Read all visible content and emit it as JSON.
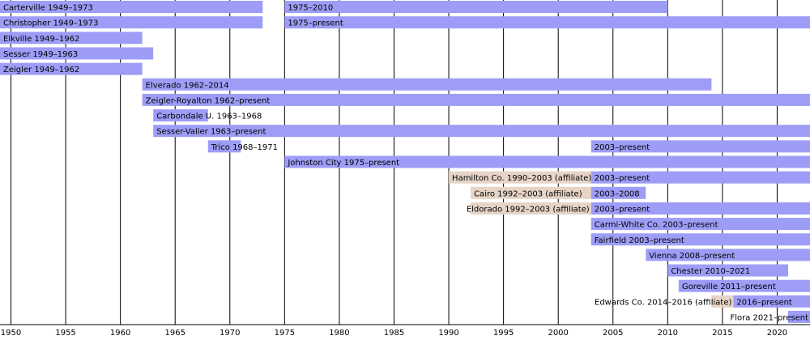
{
  "chart_data": {
    "type": "timeline",
    "xlim": [
      1949,
      2023
    ],
    "xticks": [
      1950,
      1955,
      1960,
      1965,
      1970,
      1975,
      1980,
      1985,
      1990,
      1995,
      2000,
      2005,
      2010,
      2015,
      2020
    ],
    "grid": true,
    "rows": [
      {
        "bars": [
          {
            "label": "Carterville 1949–1973",
            "start": 1949,
            "end": 1973,
            "color": "#9d9df7"
          },
          {
            "label": "1975–2010",
            "start": 1975,
            "end": 2010,
            "color": "#9d9df7"
          }
        ]
      },
      {
        "bars": [
          {
            "label": "Christopher 1949–1973",
            "start": 1949,
            "end": 1973,
            "color": "#9d9df7"
          },
          {
            "label": "1975–present",
            "start": 1975,
            "end": null,
            "color": "#9d9df7"
          }
        ]
      },
      {
        "bars": [
          {
            "label": "Elkville 1949–1962",
            "start": 1949,
            "end": 1962,
            "color": "#9d9df7"
          }
        ]
      },
      {
        "bars": [
          {
            "label": "Sesser 1949–1963",
            "start": 1949,
            "end": 1963,
            "color": "#9d9df7"
          }
        ]
      },
      {
        "bars": [
          {
            "label": "Zeigler 1949–1962",
            "start": 1949,
            "end": 1962,
            "color": "#9d9df7"
          }
        ]
      },
      {
        "bars": [
          {
            "label": "Elverado 1962–2014",
            "start": 1962,
            "end": 2014,
            "color": "#9d9df7"
          }
        ]
      },
      {
        "bars": [
          {
            "label": "Zeigler-Royalton 1962–present",
            "start": 1962,
            "end": null,
            "color": "#9d9df7"
          }
        ]
      },
      {
        "bars": [
          {
            "label": "Carbondale U. 1963–1968",
            "start": 1963,
            "end": 1968,
            "color": "#9d9df7"
          }
        ]
      },
      {
        "bars": [
          {
            "label": "Sesser-Valier 1963–present",
            "start": 1963,
            "end": null,
            "color": "#9d9df7"
          }
        ]
      },
      {
        "bars": [
          {
            "label": "Trico 1968–1971",
            "start": 1968,
            "end": 1971,
            "color": "#9d9df7"
          },
          {
            "label": "2003–present",
            "start": 2003,
            "end": null,
            "color": "#9d9df7"
          }
        ]
      },
      {
        "bars": [
          {
            "label": "Johnston City 1975–present",
            "start": 1975,
            "end": null,
            "color": "#9d9df7"
          }
        ]
      },
      {
        "bars": [
          {
            "label": "Hamilton Co. 1990–2003 (affiliate)",
            "start": 1990,
            "end": 2003,
            "color": "#e6d4c6"
          },
          {
            "label": "2003–present",
            "start": 2003,
            "end": null,
            "color": "#9d9df7"
          }
        ]
      },
      {
        "bars": [
          {
            "label": "Cairo 1992–2003 (affiliate)",
            "start": 1992,
            "end": 2003,
            "color": "#e6d4c6"
          },
          {
            "label": "2003–2008",
            "start": 2003,
            "end": 2008,
            "color": "#9d9df7"
          }
        ]
      },
      {
        "bars": [
          {
            "label": "Eldorado 1992–2003 (affiliate)",
            "start": 1992,
            "end": 2003,
            "color": "#e6d4c6"
          },
          {
            "label": "2003–present",
            "start": 2003,
            "end": null,
            "color": "#9d9df7"
          }
        ]
      },
      {
        "bars": [
          {
            "label": "Carmi-White Co. 2003–present",
            "start": 2003,
            "end": null,
            "color": "#9d9df7"
          }
        ]
      },
      {
        "bars": [
          {
            "label": "Fairfield 2003–present",
            "start": 2003,
            "end": null,
            "color": "#9d9df7"
          }
        ]
      },
      {
        "bars": [
          {
            "label": "Vienna 2008–present",
            "start": 2008,
            "end": null,
            "color": "#9d9df7"
          }
        ]
      },
      {
        "bars": [
          {
            "label": "Chester 2010–2021",
            "start": 2010,
            "end": 2021,
            "color": "#9d9df7"
          }
        ]
      },
      {
        "bars": [
          {
            "label": "Goreville 2011–present",
            "start": 2011,
            "end": null,
            "color": "#9d9df7"
          }
        ]
      },
      {
        "bars": [
          {
            "label": "Edwards Co. 2014–2016 (affiliate)",
            "start": 2014,
            "end": 2016,
            "color": "#e6d4c6"
          },
          {
            "label": "2016–present",
            "start": 2016,
            "end": null,
            "color": "#9d9df7"
          }
        ]
      },
      {
        "bars": [
          {
            "label": "Flora 2021–present",
            "start": 2021,
            "end": null,
            "color": "#9d9df7"
          }
        ]
      }
    ]
  }
}
